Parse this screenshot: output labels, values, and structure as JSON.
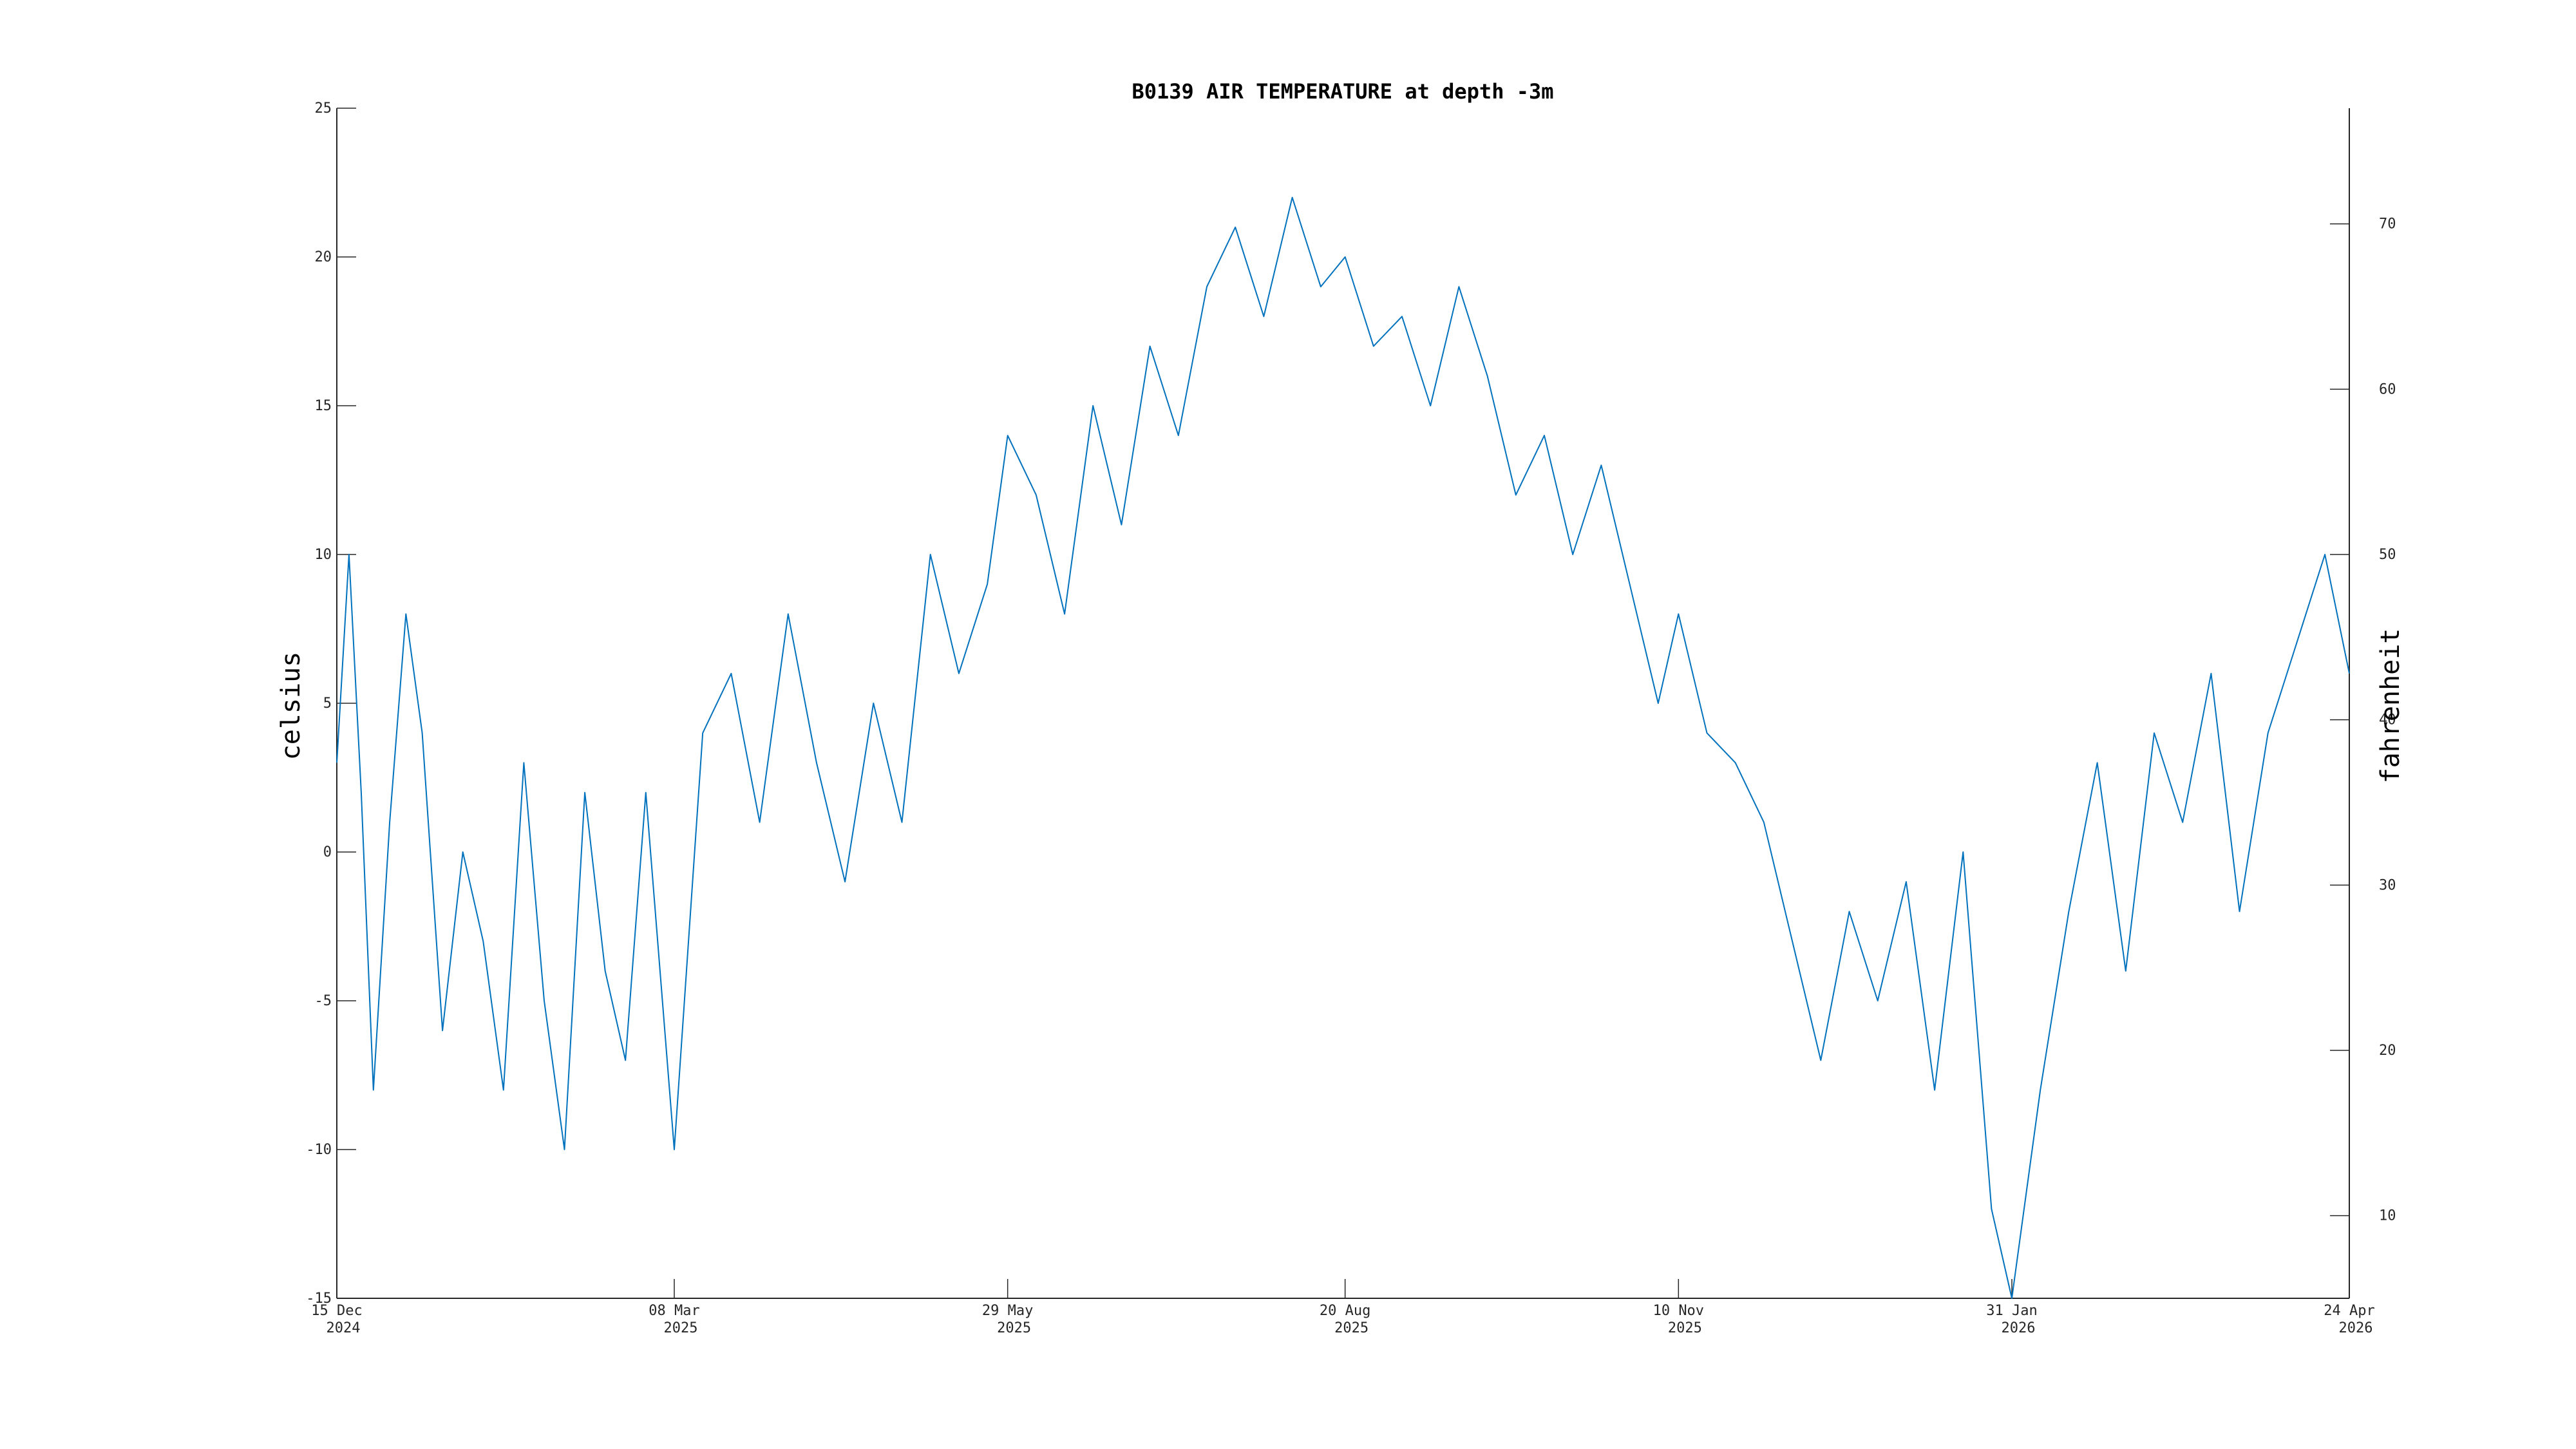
{
  "chart_data": {
    "type": "line",
    "title": "B0139 AIR TEMPERATURE at depth -3m",
    "ylabel": "celsius",
    "y2label": "fahrenheit",
    "ylim": [
      -15,
      25
    ],
    "y2lim": [
      5,
      77
    ],
    "yticks": [
      -15,
      -10,
      -5,
      0,
      5,
      10,
      15,
      20,
      25
    ],
    "y2ticks": [
      10,
      20,
      30,
      40,
      50,
      60,
      70
    ],
    "xlim": [
      "2024-12-15",
      "2026-04-24"
    ],
    "xticks": [
      {
        "date": "2024-12-15",
        "day": "15 Dec",
        "year": "2024"
      },
      {
        "date": "2025-03-08",
        "day": "08 Mar",
        "year": "2025"
      },
      {
        "date": "2025-05-29",
        "day": "29 May",
        "year": "2025"
      },
      {
        "date": "2025-08-20",
        "day": "20 Aug",
        "year": "2025"
      },
      {
        "date": "2025-11-10",
        "day": "10 Nov",
        "year": "2025"
      },
      {
        "date": "2026-01-31",
        "day": "31 Jan",
        "year": "2026"
      },
      {
        "date": "2026-04-24",
        "day": "24 Apr",
        "year": "2026"
      }
    ],
    "grid": false,
    "line_color": "#0072bd",
    "series": [
      {
        "x": [
          "2024-12-15",
          "2024-12-18",
          "2024-12-21",
          "2024-12-24",
          "2024-12-28",
          "2025-01-01",
          "2025-01-05",
          "2025-01-10",
          "2025-01-15",
          "2025-01-20",
          "2025-01-25",
          "2025-01-30",
          "2025-02-04",
          "2025-02-09",
          "2025-02-14",
          "2025-02-19",
          "2025-02-24",
          "2025-03-01",
          "2025-03-08",
          "2025-03-15",
          "2025-03-22",
          "2025-03-29",
          "2025-04-05",
          "2025-04-12",
          "2025-04-19",
          "2025-04-26",
          "2025-05-03",
          "2025-05-10",
          "2025-05-17",
          "2025-05-24",
          "2025-05-29",
          "2025-06-05",
          "2025-06-12",
          "2025-06-19",
          "2025-06-26",
          "2025-07-03",
          "2025-07-10",
          "2025-07-17",
          "2025-07-24",
          "2025-07-31",
          "2025-08-07",
          "2025-08-14",
          "2025-08-20",
          "2025-08-27",
          "2025-09-03",
          "2025-09-10",
          "2025-09-17",
          "2025-09-24",
          "2025-10-01",
          "2025-10-08",
          "2025-10-15",
          "2025-10-22",
          "2025-10-29",
          "2025-11-05",
          "2025-11-10",
          "2025-11-17",
          "2025-11-24",
          "2025-12-01",
          "2025-12-08",
          "2025-12-15",
          "2025-12-22",
          "2025-12-29",
          "2026-01-05",
          "2026-01-12",
          "2026-01-19",
          "2026-01-26",
          "2026-01-31",
          "2026-02-07",
          "2026-02-14",
          "2026-02-21",
          "2026-02-28",
          "2026-03-07",
          "2026-03-14",
          "2026-03-21",
          "2026-03-28",
          "2026-04-04",
          "2026-04-11",
          "2026-04-18",
          "2026-04-24"
        ],
        "y": [
          3,
          10,
          2,
          -8,
          1,
          8,
          4,
          -6,
          0,
          -3,
          -8,
          3,
          -5,
          -10,
          2,
          -4,
          -7,
          2,
          -10,
          4,
          6,
          1,
          8,
          3,
          -1,
          5,
          1,
          10,
          6,
          9,
          14,
          12,
          8,
          15,
          11,
          17,
          14,
          19,
          21,
          18,
          22,
          19,
          20,
          17,
          18,
          15,
          19,
          16,
          12,
          14,
          10,
          13,
          9,
          5,
          8,
          4,
          3,
          1,
          -3,
          -7,
          -2,
          -5,
          -1,
          -8,
          0,
          -12,
          -15,
          -8,
          -2,
          3,
          -4,
          4,
          1,
          6,
          -2,
          4,
          7,
          10,
          6
        ]
      }
    ]
  }
}
